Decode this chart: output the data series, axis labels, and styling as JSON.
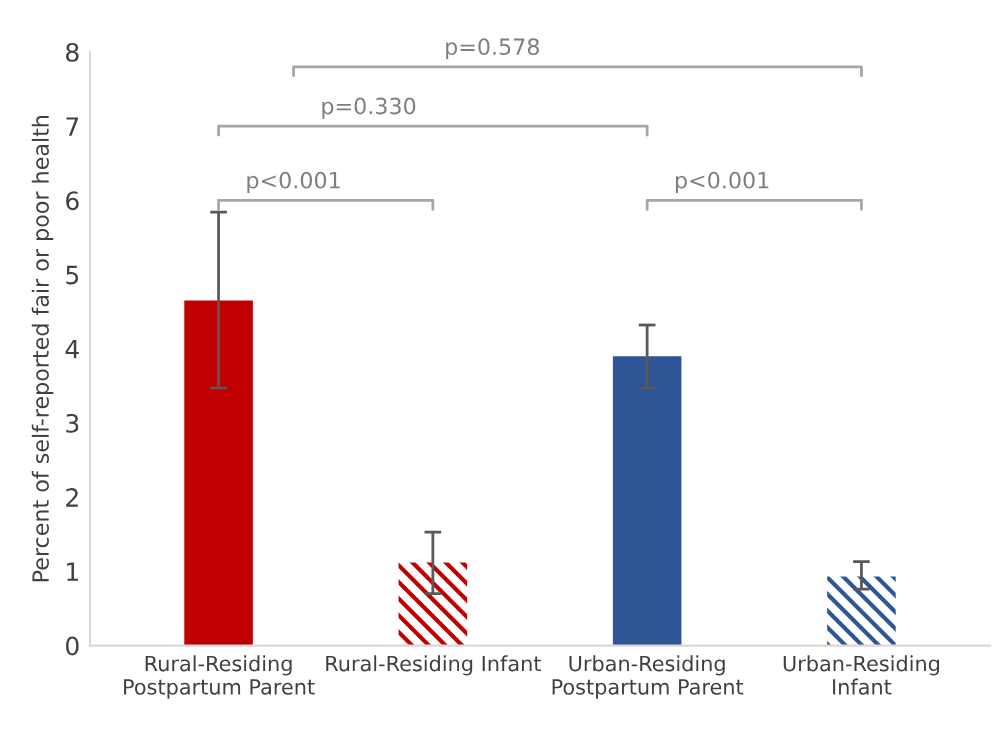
{
  "chart_data": {
    "type": "bar",
    "ylabel": "Percent of self-reported fair or poor health",
    "categories": [
      "Rural-Residing\nPostpartum Parent",
      "Rural-Residing Infant",
      "Urban-Residing\nPostpartum Parent",
      "Urban-Residing\nInfant"
    ],
    "values": [
      4.65,
      1.12,
      3.9,
      0.93
    ],
    "errors": [
      [
        3.47,
        5.84
      ],
      [
        0.7,
        1.53
      ],
      [
        3.47,
        4.32
      ],
      [
        0.76,
        1.13
      ]
    ],
    "colors": [
      "#c00000",
      "#c00000",
      "#2f5597",
      "#2f5597"
    ],
    "ylim": [
      0,
      8
    ],
    "yticks": [
      0,
      1,
      2,
      3,
      4,
      5,
      6,
      7,
      8
    ],
    "grid": false,
    "legend": false,
    "annotations": [
      "p<0.001",
      "p=0.330",
      "p<0.001",
      "p=0.578"
    ]
  }
}
